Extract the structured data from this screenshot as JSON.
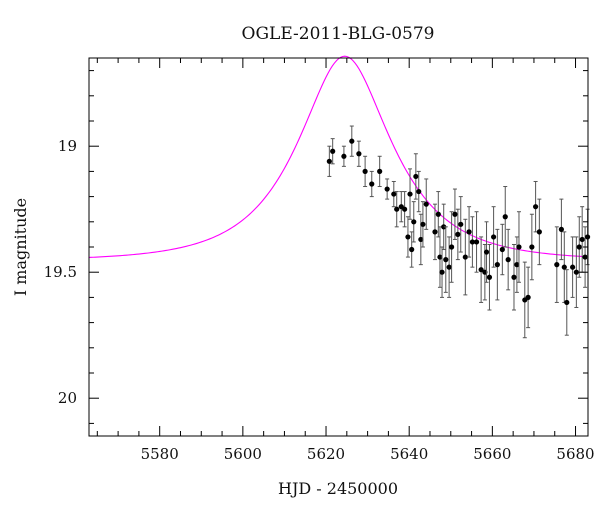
{
  "chart_data": {
    "type": "scatter",
    "title": "OGLE-2011-BLG-0579",
    "xlabel": "HJD - 2450000",
    "ylabel": "I magnitude",
    "xlim": [
      5563,
      5683
    ],
    "ylim": [
      20.15,
      18.65
    ],
    "y_inverted": true,
    "grid": false,
    "x_ticks": [
      5580,
      5600,
      5620,
      5640,
      5660,
      5680
    ],
    "y_ticks": [
      19,
      19.5,
      20
    ],
    "x_tick_labels": [
      "5580",
      "5600",
      "5620",
      "5640",
      "5660",
      "5680"
    ],
    "y_tick_labels": [
      "19",
      "19.5",
      "20"
    ],
    "colors": {
      "model": "#ff00ff",
      "points": "#000000",
      "errorbars": "#555555"
    },
    "series": [
      {
        "type": "scatter",
        "points": [
          [
            5620.8,
            19.06,
            0.06
          ],
          [
            5621.6,
            19.02,
            0.05
          ],
          [
            5624.3,
            19.04,
            0.04
          ],
          [
            5626.2,
            18.98,
            0.06
          ],
          [
            5627.9,
            19.03,
            0.05
          ],
          [
            5629.4,
            19.1,
            0.06
          ],
          [
            5631.0,
            19.15,
            0.05
          ],
          [
            5632.9,
            19.1,
            0.06
          ],
          [
            5634.7,
            19.17,
            0.04
          ],
          [
            5636.3,
            19.19,
            0.05
          ],
          [
            5637.0,
            19.25,
            0.07
          ],
          [
            5638.1,
            19.24,
            0.06
          ],
          [
            5638.9,
            19.25,
            0.07
          ],
          [
            5639.7,
            19.36,
            0.08
          ],
          [
            5640.2,
            19.19,
            0.1
          ],
          [
            5640.6,
            19.41,
            0.07
          ],
          [
            5641.1,
            19.3,
            0.08
          ],
          [
            5641.6,
            19.12,
            0.09
          ],
          [
            5642.3,
            19.18,
            0.08
          ],
          [
            5642.8,
            19.37,
            0.1
          ],
          [
            5643.3,
            19.31,
            0.09
          ],
          [
            5644.1,
            19.23,
            0.1
          ],
          [
            5646.2,
            19.34,
            0.11
          ],
          [
            5647.0,
            19.27,
            0.09
          ],
          [
            5647.4,
            19.44,
            0.12
          ],
          [
            5647.9,
            19.5,
            0.1
          ],
          [
            5648.3,
            19.32,
            0.09
          ],
          [
            5648.8,
            19.45,
            0.13
          ],
          [
            5649.6,
            19.48,
            0.12
          ],
          [
            5650.2,
            19.4,
            0.14
          ],
          [
            5651.0,
            19.27,
            0.1
          ],
          [
            5651.7,
            19.35,
            0.1
          ],
          [
            5652.4,
            19.31,
            0.11
          ],
          [
            5653.5,
            19.44,
            0.15
          ],
          [
            5654.4,
            19.34,
            0.1
          ],
          [
            5655.2,
            19.38,
            0.1
          ],
          [
            5656.2,
            19.38,
            0.12
          ],
          [
            5657.3,
            19.49,
            0.13
          ],
          [
            5658.2,
            19.5,
            0.11
          ],
          [
            5658.6,
            19.42,
            0.12
          ],
          [
            5659.3,
            19.52,
            0.13
          ],
          [
            5660.3,
            19.36,
            0.12
          ],
          [
            5661.2,
            19.47,
            0.14
          ],
          [
            5662.4,
            19.41,
            0.1
          ],
          [
            5663.1,
            19.28,
            0.12
          ],
          [
            5663.8,
            19.45,
            0.12
          ],
          [
            5665.2,
            19.52,
            0.13
          ],
          [
            5665.9,
            19.47,
            0.11
          ],
          [
            5666.4,
            19.4,
            0.14
          ],
          [
            5667.8,
            19.61,
            0.15
          ],
          [
            5668.6,
            19.6,
            0.12
          ],
          [
            5669.5,
            19.4,
            0.13
          ],
          [
            5670.4,
            19.24,
            0.1
          ],
          [
            5671.3,
            19.34,
            0.13
          ],
          [
            5675.5,
            19.47,
            0.15
          ],
          [
            5676.6,
            19.33,
            0.12
          ],
          [
            5677.3,
            19.48,
            0.14
          ],
          [
            5677.9,
            19.62,
            0.13
          ],
          [
            5679.3,
            19.48,
            0.12
          ],
          [
            5680.2,
            19.5,
            0.14
          ],
          [
            5680.9,
            19.4,
            0.12
          ],
          [
            5681.6,
            19.37,
            0.13
          ],
          [
            5682.3,
            19.44,
            0.12
          ],
          [
            5682.9,
            19.36,
            0.11
          ]
        ]
      },
      {
        "type": "line",
        "model": {
          "baseline": 19.455,
          "t0": 5624.5,
          "u0": 0.52,
          "tE": 19
        }
      }
    ]
  }
}
